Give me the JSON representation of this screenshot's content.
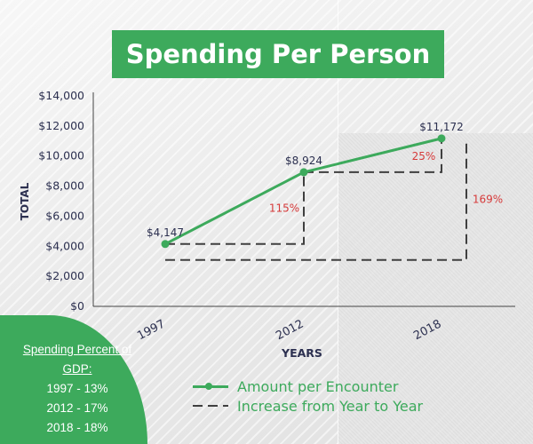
{
  "chart_data": {
    "type": "line",
    "title": "Spending Per Person",
    "xlabel": "YEARS",
    "ylabel": "TOTAL",
    "ylim": [
      0,
      14000
    ],
    "y_ticks": [
      "$0",
      "$2,000",
      "$4,000",
      "$6,000",
      "$8,000",
      "$10,000",
      "$12,000",
      "$14,000"
    ],
    "categories": [
      "1997",
      "2012",
      "2018"
    ],
    "series": [
      {
        "name": "Amount per Encounter",
        "values": [
          4147,
          8924,
          11172
        ],
        "data_labels": [
          "$4,147",
          "$8,924",
          "$11,172"
        ],
        "color": "#3daa5c"
      }
    ],
    "increase_annotations": [
      {
        "label": "115%",
        "from_category": "1997",
        "to_category": "2012"
      },
      {
        "label": "25%",
        "from_category": "2012",
        "to_category": "2018"
      },
      {
        "label": "169%",
        "from_category": "1997",
        "to_category": "2018"
      }
    ],
    "increase_series_name": "Increase from Year to Year",
    "annotation_color": "#d63a3a",
    "dash_color": "#3f3f3f",
    "grid": false,
    "legend_position": "bottom"
  },
  "gdp_panel": {
    "title": "Spending Percent of GDP:",
    "items": [
      "1997 - 13%",
      "2012 - 17%",
      "2018 - 18%"
    ]
  }
}
